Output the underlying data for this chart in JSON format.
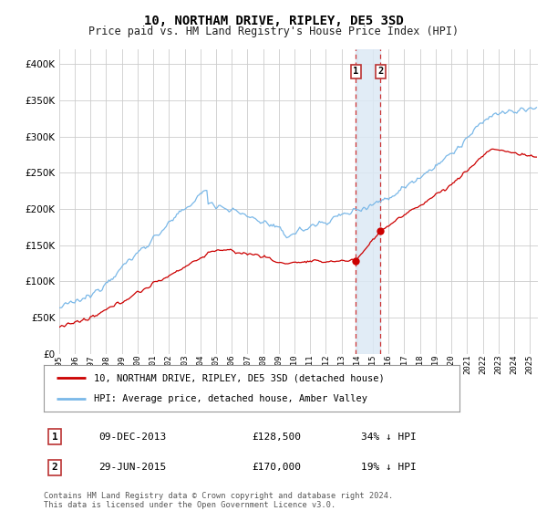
{
  "title": "10, NORTHAM DRIVE, RIPLEY, DE5 3SD",
  "subtitle": "Price paid vs. HM Land Registry's House Price Index (HPI)",
  "hpi_label": "HPI: Average price, detached house, Amber Valley",
  "price_label": "10, NORTHAM DRIVE, RIPLEY, DE5 3SD (detached house)",
  "hpi_color": "#7ab8e8",
  "price_color": "#cc0000",
  "annotation_fill": "#dce9f5",
  "annotation_line": "#cc3333",
  "sale1_date": "09-DEC-2013",
  "sale1_price": "£128,500",
  "sale1_note": "34% ↓ HPI",
  "sale1_year": 2013.92,
  "sale1_val": 128500,
  "sale2_date": "29-JUN-2015",
  "sale2_price": "£170,000",
  "sale2_note": "19% ↓ HPI",
  "sale2_year": 2015.49,
  "sale2_val": 170000,
  "ylim": [
    0,
    420000
  ],
  "xlim": [
    1995,
    2025.5
  ],
  "yticks": [
    0,
    50000,
    100000,
    150000,
    200000,
    250000,
    300000,
    350000,
    400000
  ],
  "footer": "Contains HM Land Registry data © Crown copyright and database right 2024.\nThis data is licensed under the Open Government Licence v3.0.",
  "bg_color": "#ffffff",
  "grid_color": "#cccccc"
}
